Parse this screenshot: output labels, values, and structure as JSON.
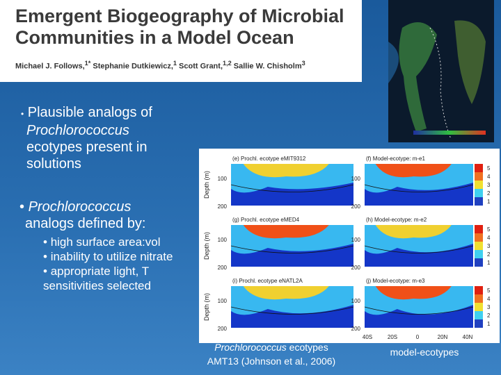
{
  "header": {
    "title": "Emergent Biogeography of Microbial Communities in a Model Ocean",
    "authors": [
      {
        "name": "Michael J. Follows,",
        "sup": "1*"
      },
      {
        "name": "Stephanie Dutkiewicz,",
        "sup": "1"
      },
      {
        "name": "Scott Grant,",
        "sup": "1,2"
      },
      {
        "name": "Sallie W. Chisholm",
        "sup": "3"
      }
    ]
  },
  "bullets": [
    {
      "before": "Plausible analogs of",
      "italic": "Prochlorococcus",
      "after": "ecotypes present in solutions"
    },
    {
      "italic": "Prochlorococcus",
      "after": "analogs defined by:",
      "sub": [
        "high surface area:vol",
        "inability to utilize nitrate",
        "appropriate light, T sensitivities selected"
      ]
    }
  ],
  "figure": {
    "depth_label": "Depth (m)",
    "depth_ticks": [
      "100",
      "200"
    ],
    "colorbar_ticks": [
      "5",
      "4",
      "3",
      "2",
      "1"
    ],
    "panels": [
      [
        "(e) Prochl. ecotype eMIT9312",
        "(f) Model-ecotype: m-e1"
      ],
      [
        "(g) Prochl. ecotype eMED4",
        "(h) Model-ecotype: m-e2"
      ],
      [
        "(i) Prochl. ecotype eNATL2A",
        "(j) Model-ecotype: m-e3"
      ]
    ],
    "lat_ticks": [
      "40S",
      "20S",
      "0",
      "20N",
      "40N"
    ]
  },
  "captions": {
    "left_italic": "Prochlorococcus",
    "left_rest": "ecotypes",
    "left_source": "AMT13 (Johnson et al., 2006)",
    "right": "model-ecotypes"
  }
}
